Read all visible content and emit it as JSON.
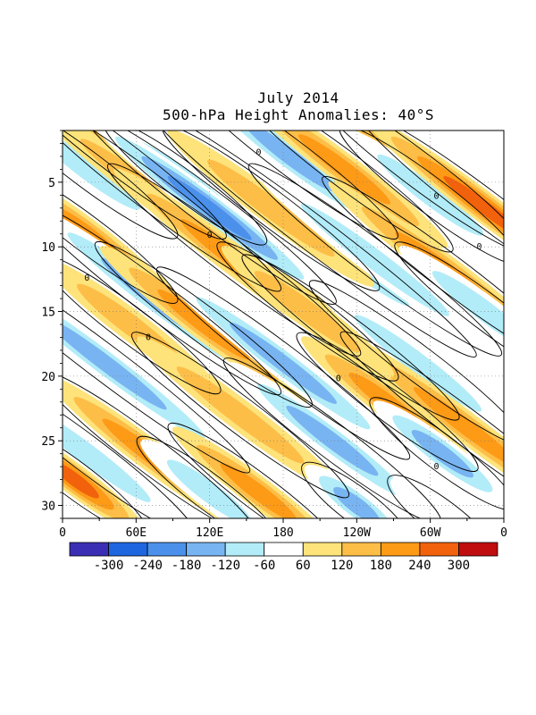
{
  "title": "July 2014",
  "subtitle": "500-hPa Height Anomalies: 40°S",
  "chart_data": {
    "type": "heatmap",
    "title": "July 2014",
    "subtitle": "500-hPa Height Anomalies: 40°S",
    "x_ticks": [
      "0",
      "60E",
      "120E",
      "180",
      "120W",
      "60W",
      "0"
    ],
    "x_tick_values": [
      0,
      60,
      120,
      180,
      240,
      300,
      360
    ],
    "y_ticks": [
      "5",
      "10",
      "15",
      "20",
      "25",
      "30"
    ],
    "y_tick_values": [
      5,
      10,
      15,
      20,
      25,
      30
    ],
    "xlim": [
      0,
      360
    ],
    "ylim": [
      1,
      31
    ],
    "y_direction": "day of month increasing downward",
    "grid": "dotted",
    "contour_label": "0",
    "colorbar": {
      "labels": [
        "-300",
        "-240",
        "-180",
        "-120",
        "-60",
        "60",
        "120",
        "180",
        "240",
        "300"
      ],
      "levels": [
        -300,
        -240,
        -180,
        -120,
        -60,
        60,
        120,
        180,
        240,
        300
      ],
      "colors": [
        "#3a2fb4",
        "#1d66e0",
        "#4b90ea",
        "#78b4f2",
        "#b2ecf8",
        "#ffffff",
        "#fde37a",
        "#fdbe48",
        "#fd9a16",
        "#f2610c",
        "#c00d0d"
      ]
    },
    "bands": [
      {
        "anom": -150,
        "lon": 20,
        "day": 4,
        "len": 10
      },
      {
        "anom": 160,
        "lon": 45,
        "day": 3,
        "len": 12
      },
      {
        "anom": -200,
        "lon": 100,
        "day": 5,
        "len": 9
      },
      {
        "anom": 170,
        "lon": 75,
        "day": 6,
        "len": 14
      },
      {
        "anom": -230,
        "lon": 185,
        "day": 3,
        "len": 12
      },
      {
        "anom": -260,
        "lon": 120,
        "day": 7,
        "len": 14
      },
      {
        "anom": 190,
        "lon": 230,
        "day": 4,
        "len": 12
      },
      {
        "anom": -120,
        "lon": 205,
        "day": 9,
        "len": 18
      },
      {
        "anom": 200,
        "lon": 140,
        "day": 11,
        "len": 14
      },
      {
        "anom": 170,
        "lon": 170,
        "day": 7,
        "len": 12
      },
      {
        "anom": -140,
        "lon": 255,
        "day": 11,
        "len": 14
      },
      {
        "anom": 150,
        "lon": 290,
        "day": 4,
        "len": 12
      },
      {
        "anom": -130,
        "lon": 300,
        "day": 6,
        "len": 10
      },
      {
        "anom": 250,
        "lon": 345,
        "day": 7,
        "len": 14
      },
      {
        "anom": 220,
        "lon": 315,
        "day": 12,
        "len": 14
      },
      {
        "anom": -170,
        "lon": 345,
        "day": 15,
        "len": 10
      },
      {
        "anom": 220,
        "lon": 20,
        "day": 9,
        "len": 10
      },
      {
        "anom": -180,
        "lon": 75,
        "day": 14,
        "len": 14
      },
      {
        "anom": 200,
        "lon": 115,
        "day": 16,
        "len": 12
      },
      {
        "anom": -220,
        "lon": 35,
        "day": 19,
        "len": 16
      },
      {
        "anom": 150,
        "lon": 55,
        "day": 16,
        "len": 10
      },
      {
        "anom": -180,
        "lon": 180,
        "day": 19,
        "len": 14
      },
      {
        "anom": -210,
        "lon": 220,
        "day": 25,
        "len": 12
      },
      {
        "anom": 160,
        "lon": 235,
        "day": 17,
        "len": 12
      },
      {
        "anom": -150,
        "lon": 290,
        "day": 19,
        "len": 12
      },
      {
        "anom": 210,
        "lon": 265,
        "day": 22,
        "len": 10
      },
      {
        "anom": 160,
        "lon": 145,
        "day": 23,
        "len": 12
      },
      {
        "anom": 200,
        "lon": 330,
        "day": 24,
        "len": 14
      },
      {
        "anom": -180,
        "lon": 310,
        "day": 26,
        "len": 8
      },
      {
        "anom": -170,
        "lon": 20,
        "day": 26,
        "len": 12
      },
      {
        "anom": 220,
        "lon": 70,
        "day": 26,
        "len": 12
      },
      {
        "anom": 250,
        "lon": 10,
        "day": 28,
        "len": 8
      },
      {
        "anom": 180,
        "lon": 160,
        "day": 29,
        "len": 10
      },
      {
        "anom": -230,
        "lon": 240,
        "day": 30,
        "len": 6
      },
      {
        "anom": -140,
        "lon": 120,
        "day": 29,
        "len": 8
      },
      {
        "anom": 160,
        "lon": 200,
        "day": 15,
        "len": 10
      },
      {
        "anom": -100,
        "lon": 310,
        "day": 31,
        "len": 6
      }
    ]
  }
}
